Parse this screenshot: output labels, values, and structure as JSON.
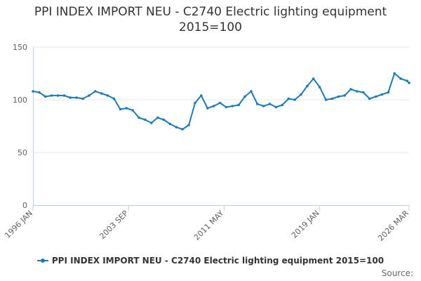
{
  "chart_data": {
    "type": "line",
    "title_lines": [
      "PPI INDEX IMPORT NEU - C2740 Electric lighting equipment",
      "2015=100"
    ],
    "xlabel": "",
    "ylabel": "",
    "ylim": [
      0,
      150
    ],
    "y_ticks": [
      "0",
      "50",
      "100",
      "150"
    ],
    "x_range_years": [
      1996.0,
      2026.17
    ],
    "x_tick_labels": [
      "1996 JAN",
      "2003 SEP",
      "2011 MAY",
      "2019 JAN",
      "2026 MAR"
    ],
    "x_tick_years": [
      1996.0,
      2003.67,
      2011.33,
      2019.0,
      2026.17
    ],
    "grid": true,
    "legend_position": "bottom-center",
    "series": [
      {
        "name": "PPI INDEX IMPORT NEU - C2740 Electric lighting equipment 2015=100",
        "color": "#1f7ab8",
        "x": [
          1996.0,
          1996.5,
          1997.0,
          1997.5,
          1998.0,
          1998.5,
          1999.0,
          1999.5,
          2000.0,
          2000.5,
          2001.0,
          2001.5,
          2002.0,
          2002.5,
          2003.0,
          2003.5,
          2004.0,
          2004.5,
          2005.0,
          2005.5,
          2006.0,
          2006.5,
          2007.0,
          2007.5,
          2008.0,
          2008.5,
          2009.0,
          2009.5,
          2010.0,
          2010.5,
          2011.0,
          2011.5,
          2012.0,
          2012.5,
          2013.0,
          2013.5,
          2014.0,
          2014.5,
          2015.0,
          2015.5,
          2016.0,
          2016.5,
          2017.0,
          2017.5,
          2018.0,
          2018.5,
          2019.0,
          2019.5,
          2020.0,
          2020.5,
          2021.0,
          2021.5,
          2022.0,
          2022.5,
          2023.0,
          2023.5,
          2024.0,
          2024.5,
          2025.0,
          2025.5,
          2026.0,
          2026.17
        ],
        "values": [
          108,
          107,
          103,
          104,
          104,
          104,
          102,
          102,
          101,
          104,
          108,
          106,
          104,
          101,
          91,
          92,
          90,
          83,
          81,
          78,
          83,
          81,
          77,
          74,
          72,
          76,
          97,
          104,
          92,
          94,
          97,
          93,
          94,
          95,
          103,
          108,
          96,
          94,
          96,
          93,
          95,
          101,
          100,
          105,
          113,
          120,
          112,
          100,
          101,
          103,
          104,
          110,
          108,
          107,
          101,
          103,
          105,
          107,
          125,
          120,
          118,
          116
        ]
      }
    ]
  },
  "credits": "Source:"
}
